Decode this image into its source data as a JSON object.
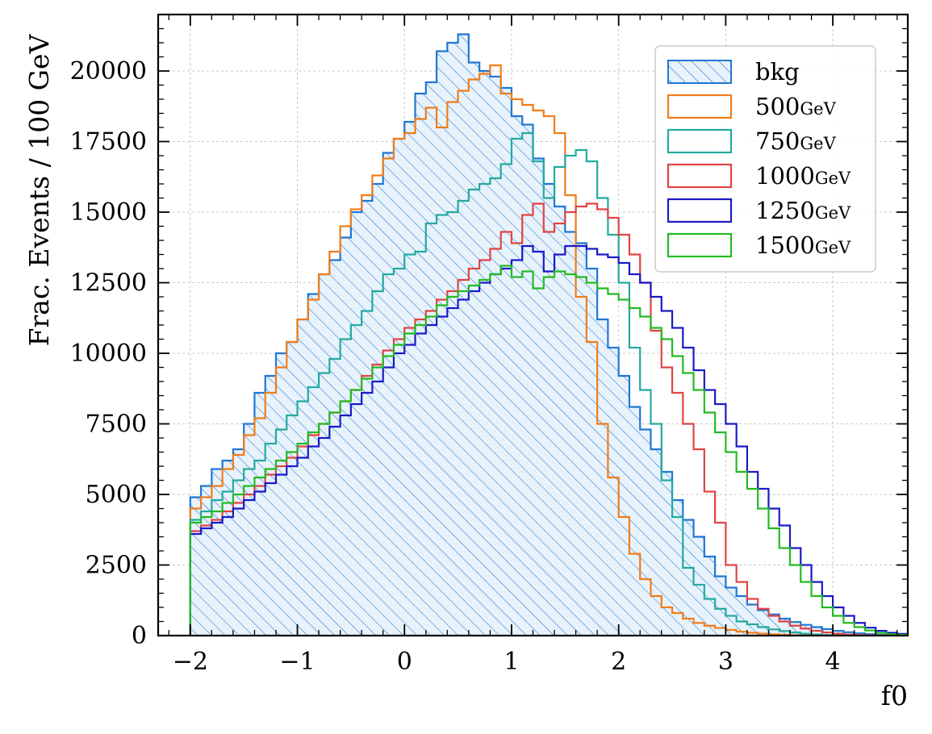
{
  "chart_data": {
    "type": "histogram-step",
    "title": "",
    "xlabel": "f0",
    "ylabel": "Frac. Events / 100 GeV",
    "xlim": [
      -2.3,
      4.7
    ],
    "ylim": [
      0,
      22000
    ],
    "xticks": [
      -2,
      -1,
      0,
      1,
      2,
      3,
      4
    ],
    "xtick_labels": [
      "−2",
      "−1",
      "0",
      "1",
      "2",
      "3",
      "4"
    ],
    "yticks": [
      0,
      2500,
      5000,
      7500,
      10000,
      12500,
      15000,
      17500,
      20000
    ],
    "ytick_labels": [
      "0",
      "2500",
      "5000",
      "7500",
      "10000",
      "12500",
      "15000",
      "17500",
      "20000"
    ],
    "grid": true,
    "legend_position": "top-right",
    "bin_start": -2.0,
    "bin_width": 0.1,
    "series": [
      {
        "name": "bkg",
        "unit": "",
        "color": "#1f77d4",
        "style": "hatched",
        "values": [
          4900,
          5300,
          5900,
          6200,
          6600,
          7500,
          8600,
          9200,
          10000,
          10400,
          11200,
          12100,
          12800,
          13300,
          14100,
          15000,
          15400,
          16000,
          17100,
          17600,
          18200,
          19200,
          19600,
          20700,
          21000,
          21300,
          20300,
          20000,
          19800,
          19400,
          18400,
          18100,
          16900,
          16000,
          15200,
          14300,
          13900,
          13000,
          11200,
          10200,
          9200,
          8100,
          7300,
          6600,
          5800,
          4800,
          4100,
          3500,
          2800,
          2100,
          1700,
          1400,
          1100,
          900,
          750,
          600,
          480,
          380,
          300,
          230,
          170,
          120,
          80,
          50,
          30,
          15,
          8,
          4,
          2,
          1,
          0,
          0,
          0,
          0,
          0,
          0,
          0,
          0,
          0,
          0
        ]
      },
      {
        "name": "500",
        "unit": "GeV",
        "color": "#f07d1a",
        "style": "step",
        "values": [
          4500,
          4900,
          5300,
          5900,
          6400,
          7100,
          7700,
          8600,
          9500,
          10400,
          11200,
          11900,
          12800,
          13600,
          14500,
          15100,
          15600,
          16300,
          16900,
          17600,
          17800,
          18300,
          18700,
          18000,
          18900,
          19300,
          19700,
          19900,
          20200,
          19200,
          19000,
          18800,
          18600,
          18400,
          17800,
          15600,
          12000,
          10400,
          7500,
          5600,
          4200,
          2900,
          2000,
          1400,
          1000,
          800,
          600,
          450,
          350,
          270,
          200,
          140,
          100,
          70,
          45,
          30,
          18,
          10,
          5,
          2,
          1,
          0,
          0,
          0,
          0,
          0,
          0,
          0,
          0,
          0,
          0,
          0,
          0,
          0,
          0,
          0,
          0,
          0,
          0,
          0
        ]
      },
      {
        "name": "750",
        "unit": "GeV",
        "color": "#22aaa0",
        "style": "step",
        "values": [
          4100,
          4400,
          4800,
          5100,
          5500,
          5900,
          6200,
          6800,
          7300,
          7800,
          8300,
          8800,
          9300,
          9800,
          10500,
          11000,
          11500,
          12200,
          12800,
          13000,
          13500,
          13600,
          14600,
          14900,
          15000,
          15400,
          15800,
          16000,
          16200,
          16700,
          17600,
          17800,
          16800,
          15500,
          16600,
          17000,
          17200,
          16800,
          15500,
          14200,
          12500,
          10200,
          8700,
          7500,
          5500,
          4200,
          2400,
          1800,
          1300,
          950,
          700,
          500,
          400,
          300,
          220,
          160,
          110,
          70,
          40,
          20,
          10,
          5,
          0,
          0,
          0,
          0,
          0,
          0,
          0,
          0,
          0,
          0,
          0,
          0,
          0,
          0,
          0,
          0,
          0,
          0
        ]
      },
      {
        "name": "1000",
        "unit": "GeV",
        "color": "#e04444",
        "style": "step",
        "values": [
          3700,
          3900,
          4100,
          4400,
          4700,
          5000,
          5300,
          5700,
          6000,
          6300,
          6700,
          7100,
          7500,
          7900,
          8300,
          8700,
          9200,
          9600,
          10100,
          10500,
          10900,
          11200,
          11500,
          11900,
          12200,
          12600,
          13000,
          13300,
          13700,
          14300,
          13900,
          14900,
          15300,
          14300,
          14600,
          15000,
          15200,
          15300,
          15100,
          14800,
          14200,
          13500,
          12500,
          10800,
          9500,
          8600,
          7500,
          6600,
          5100,
          4000,
          2500,
          1900,
          1300,
          950,
          700,
          500,
          350,
          250,
          170,
          110,
          70,
          40,
          20,
          10,
          5,
          2,
          0,
          0,
          0,
          0,
          0,
          0,
          0,
          0,
          0,
          0,
          0,
          0,
          0,
          0
        ]
      },
      {
        "name": "1250",
        "unit": "GeV",
        "color": "#1a1ac8",
        "style": "step",
        "values": [
          3600,
          3800,
          4000,
          4200,
          4500,
          4800,
          5100,
          5400,
          5700,
          6000,
          6300,
          6700,
          7000,
          7400,
          7800,
          8200,
          8600,
          9000,
          9500,
          10000,
          10300,
          10700,
          11000,
          11300,
          11600,
          11900,
          12200,
          12500,
          12800,
          13000,
          13300,
          13800,
          13600,
          12900,
          13500,
          13800,
          13800,
          13700,
          13500,
          13400,
          13200,
          12800,
          12500,
          12000,
          11500,
          10900,
          10200,
          9400,
          8700,
          8200,
          7500,
          6700,
          5800,
          5200,
          4500,
          3900,
          3100,
          2500,
          1900,
          1400,
          1000,
          700,
          450,
          280,
          170,
          100,
          60,
          30,
          15,
          8,
          4,
          2,
          0,
          0,
          0,
          0,
          0,
          0,
          0,
          0
        ]
      },
      {
        "name": "1500",
        "unit": "GeV",
        "color": "#22bb22",
        "style": "step",
        "values": [
          4000,
          4200,
          4400,
          4700,
          5000,
          5300,
          5600,
          5900,
          6200,
          6500,
          6800,
          7200,
          7500,
          7900,
          8300,
          8700,
          9100,
          9500,
          9900,
          10300,
          10700,
          11000,
          11300,
          11700,
          12000,
          12200,
          12400,
          12600,
          12800,
          13100,
          12700,
          12900,
          12300,
          12700,
          12900,
          12800,
          12700,
          12500,
          12300,
          12100,
          11900,
          11600,
          11300,
          10900,
          10500,
          9900,
          9300,
          8700,
          7900,
          7200,
          6500,
          5800,
          5200,
          4500,
          3800,
          3100,
          2500,
          1900,
          1400,
          1000,
          700,
          450,
          300,
          180,
          100,
          50,
          25,
          10,
          5,
          2,
          0,
          0,
          0,
          0,
          0,
          0,
          0,
          0,
          0,
          0
        ]
      }
    ]
  }
}
